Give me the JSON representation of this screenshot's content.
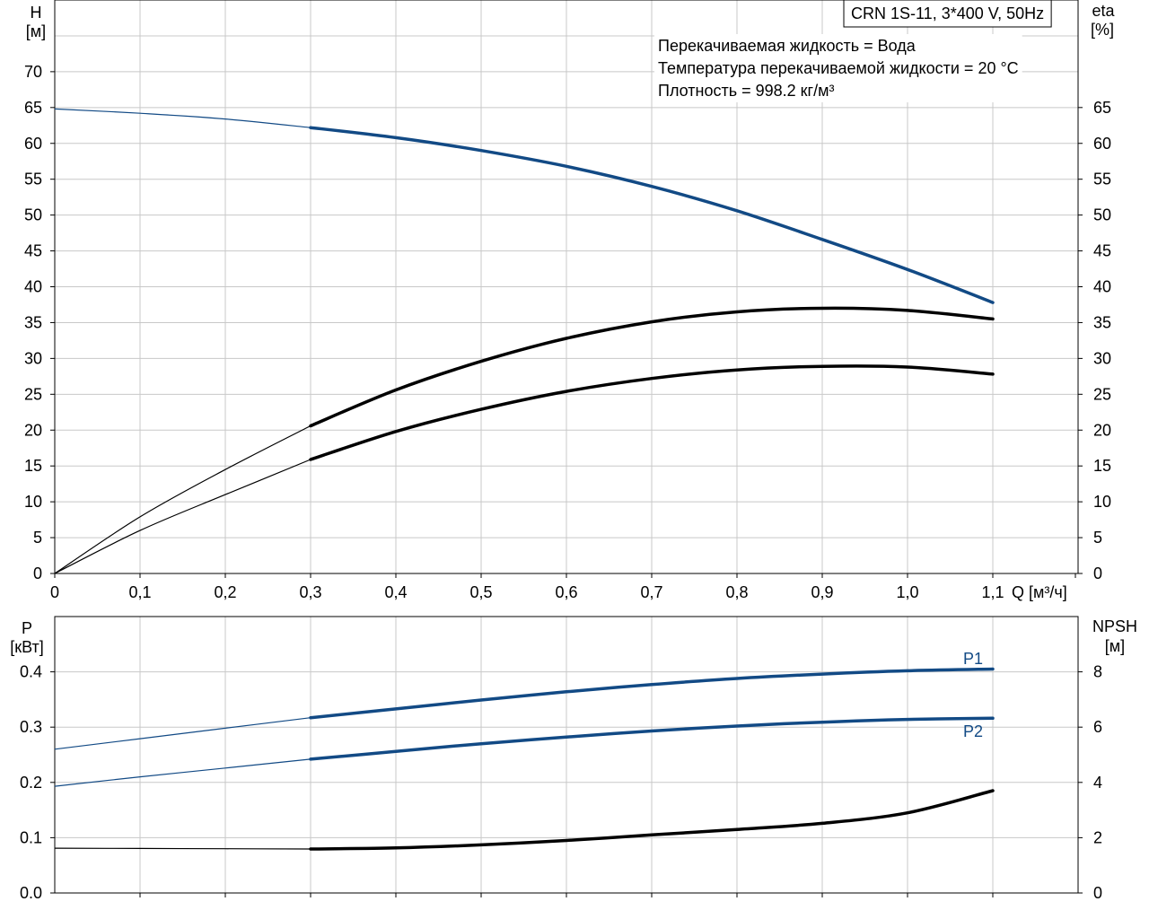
{
  "chart_data": [
    {
      "type": "line",
      "title": "CRN 1S-11, 3*400 V, 50Hz",
      "annotations": [
        "Перекачиваемая жидкость = Вода",
        "Температура перекачиваемой жидкости = 20 °C",
        "Плотность = 998.2 кг/м³"
      ],
      "xlabel": "Q [м³/ч]",
      "xlim": [
        0,
        1.2
      ],
      "x_ticks": [
        "0",
        "0,1",
        "0,2",
        "0,3",
        "0,4",
        "0,5",
        "0,6",
        "0,7",
        "0,8",
        "0,9",
        "1,0",
        "1,1"
      ],
      "ylabel_left": [
        "H",
        "[м]"
      ],
      "ylim_left": [
        0,
        80
      ],
      "y_ticks_left": [
        "0",
        "5",
        "10",
        "15",
        "20",
        "25",
        "30",
        "35",
        "40",
        "45",
        "50",
        "55",
        "60",
        "65",
        "70"
      ],
      "ylabel_right": [
        "eta",
        "[%]"
      ],
      "ylim_right": [
        0,
        80
      ],
      "y_ticks_right": [
        "0",
        "5",
        "10",
        "15",
        "20",
        "25",
        "30",
        "35",
        "40",
        "45",
        "50",
        "55",
        "60",
        "65"
      ],
      "grid": true,
      "duty_range": [
        0.3,
        1.1
      ],
      "series": [
        {
          "axis": "left",
          "color": "#124a85",
          "x": [
            0,
            0.1,
            0.2,
            0.3,
            0.4,
            0.5,
            0.6,
            0.7,
            0.8,
            0.9,
            1.0,
            1.1
          ],
          "y": [
            64.8,
            64.2,
            63.4,
            62.2,
            60.8,
            59.0,
            56.8,
            54.0,
            50.6,
            46.6,
            42.4,
            37.8
          ]
        },
        {
          "axis": "right",
          "color": "#000000",
          "x": [
            0,
            0.1,
            0.2,
            0.3,
            0.4,
            0.5,
            0.6,
            0.7,
            0.8,
            0.9,
            1.0,
            1.1
          ],
          "y": [
            0,
            7.9,
            14.5,
            20.6,
            25.6,
            29.6,
            32.8,
            35.1,
            36.5,
            37.0,
            36.7,
            35.5
          ]
        },
        {
          "axis": "right",
          "color": "#000000",
          "x": [
            0,
            0.1,
            0.2,
            0.3,
            0.4,
            0.5,
            0.6,
            0.7,
            0.8,
            0.9,
            1.0,
            1.1
          ],
          "y": [
            0,
            6.0,
            11.0,
            15.9,
            19.8,
            22.9,
            25.4,
            27.2,
            28.4,
            28.9,
            28.8,
            27.8
          ]
        }
      ]
    },
    {
      "type": "line",
      "xlim": [
        0,
        1.2
      ],
      "ylabel_left": [
        "P",
        "[кВт]"
      ],
      "ylim_left": [
        0,
        0.5
      ],
      "y_ticks_left": [
        "0.0",
        "0.1",
        "0.2",
        "0.3",
        "0.4"
      ],
      "ylabel_right": [
        "NPSH",
        "[м]"
      ],
      "ylim_right": [
        0,
        10
      ],
      "y_ticks_right": [
        "0",
        "2",
        "4",
        "6",
        "8"
      ],
      "grid": true,
      "duty_range": [
        0.3,
        1.1
      ],
      "series": [
        {
          "name": "P1",
          "axis": "left",
          "color": "#124a85",
          "x": [
            0,
            0.1,
            0.2,
            0.3,
            0.4,
            0.5,
            0.6,
            0.7,
            0.8,
            0.9,
            1.0,
            1.1
          ],
          "y": [
            0.26,
            0.279,
            0.298,
            0.317,
            0.333,
            0.349,
            0.364,
            0.377,
            0.388,
            0.396,
            0.402,
            0.405
          ]
        },
        {
          "name": "P2",
          "axis": "left",
          "color": "#124a85",
          "x": [
            0,
            0.1,
            0.2,
            0.3,
            0.4,
            0.5,
            0.6,
            0.7,
            0.8,
            0.9,
            1.0,
            1.1
          ],
          "y": [
            0.193,
            0.21,
            0.226,
            0.242,
            0.256,
            0.27,
            0.282,
            0.293,
            0.302,
            0.309,
            0.314,
            0.316
          ]
        },
        {
          "axis": "right",
          "color": "#000000",
          "x": [
            0,
            0.1,
            0.2,
            0.3,
            0.4,
            0.5,
            0.6,
            0.7,
            0.8,
            0.9,
            1.0,
            1.1
          ],
          "y": [
            1.62,
            1.61,
            1.6,
            1.59,
            1.63,
            1.74,
            1.9,
            2.1,
            2.3,
            2.52,
            2.9,
            3.7
          ]
        }
      ]
    }
  ]
}
